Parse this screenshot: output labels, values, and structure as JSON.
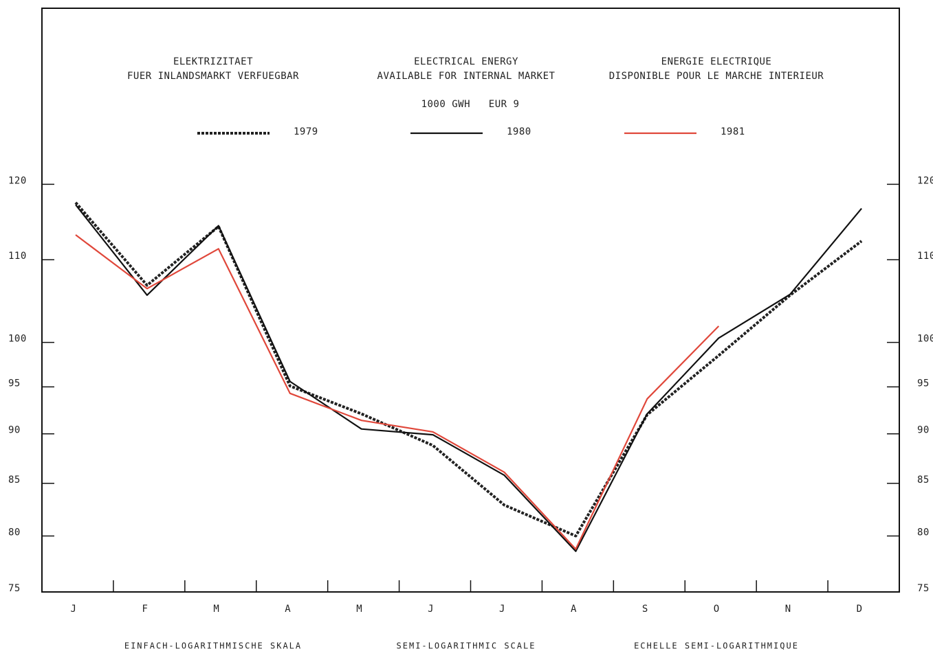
{
  "chart_data": {
    "type": "line",
    "titles": [
      [
        "ELEKTRIZITAET",
        "FUER INLANDSMARKT VERFUEGBAR"
      ],
      [
        "ELECTRICAL ENERGY",
        "AVAILABLE FOR INTERNAL MARKET"
      ],
      [
        "ENERGIE ELECTRIQUE",
        "DISPONIBLE POUR LE MARCHE INTERIEUR"
      ]
    ],
    "subtitle": "1000 GWH   EUR 9",
    "scale_notes": [
      "EINFACH-LOGARITHMISCHE SKALA",
      "SEMI-LOGARITHMIC SCALE",
      "ECHELLE SEMI-LOGARITHMIQUE"
    ],
    "categories": [
      "J",
      "F",
      "M",
      "A",
      "M",
      "J",
      "J",
      "A",
      "S",
      "O",
      "N",
      "D"
    ],
    "series": [
      {
        "name": "1979",
        "color": "#222222",
        "style": "dotted",
        "values": [
          117.5,
          106.8,
          114.3,
          95.1,
          92.1,
          88.8,
          82.9,
          80.0,
          92.0,
          98.5,
          105.6,
          112.4
        ]
      },
      {
        "name": "1980",
        "color": "#111111",
        "style": "solid",
        "values": [
          117.2,
          105.6,
          114.4,
          95.6,
          90.5,
          89.9,
          85.8,
          78.6,
          92.1,
          100.5,
          105.7,
          116.7
        ]
      },
      {
        "name": "1981",
        "color": "#e0473a",
        "style": "solid",
        "values": [
          113.2,
          106.4,
          111.4,
          94.3,
          91.4,
          90.2,
          86.1,
          78.8,
          93.7,
          101.9,
          null,
          null
        ]
      }
    ],
    "log_scale": true,
    "ylim": [
      75,
      147
    ],
    "yticks": [
      75,
      80,
      85,
      90,
      95,
      100,
      110,
      120
    ]
  }
}
